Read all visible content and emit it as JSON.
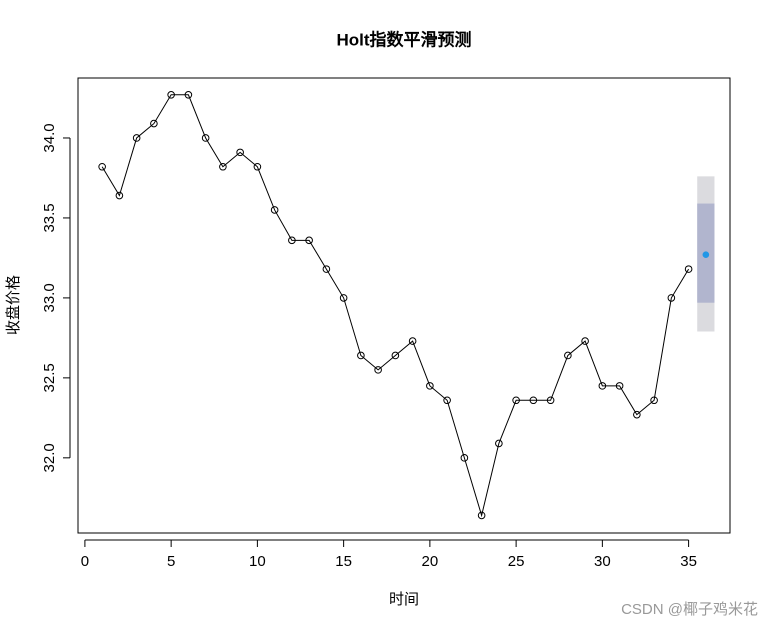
{
  "chart_data": {
    "type": "line",
    "title": "Holt指数平滑预测",
    "x_label": "时间",
    "y_label": "收盘价格",
    "x": [
      1,
      2,
      3,
      4,
      5,
      6,
      7,
      8,
      9,
      10,
      11,
      12,
      13,
      14,
      15,
      16,
      17,
      18,
      19,
      20,
      21,
      22,
      23,
      24,
      25,
      26,
      27,
      28,
      29,
      30,
      31,
      32,
      33,
      34,
      35
    ],
    "values": [
      33.82,
      33.64,
      34.0,
      34.09,
      34.27,
      34.27,
      34.0,
      33.82,
      33.91,
      33.82,
      33.55,
      33.36,
      33.36,
      33.18,
      33.0,
      32.64,
      32.55,
      32.64,
      32.73,
      32.45,
      32.36,
      32.0,
      31.64,
      32.09,
      32.36,
      32.36,
      32.36,
      32.64,
      32.73,
      32.45,
      32.45,
      32.27,
      32.36,
      33.0,
      33.18
    ],
    "color": "#000000",
    "forecast": {
      "x": 36,
      "value": 33.27,
      "lo80": 32.97,
      "hi80": 33.59,
      "lo95": 32.79,
      "hi95": 33.76,
      "color": "#2297e6",
      "color80": "#b1b5ce",
      "color95": "#dbdbdf"
    },
    "xlim": [
      -0.4,
      37.4
    ],
    "ylim": [
      31.53,
      34.375
    ],
    "xticks": [
      0,
      5,
      10,
      15,
      20,
      25,
      30,
      35
    ],
    "yticks": [
      {
        "value": 32,
        "label": "32.0"
      },
      {
        "value": 32.5,
        "label": "32.5"
      },
      {
        "value": 33,
        "label": "33.0"
      },
      {
        "value": 33.5,
        "label": "33.5"
      },
      {
        "value": 34,
        "label": "34.0"
      }
    ]
  },
  "watermark": "CSDN @椰子鸡米花"
}
